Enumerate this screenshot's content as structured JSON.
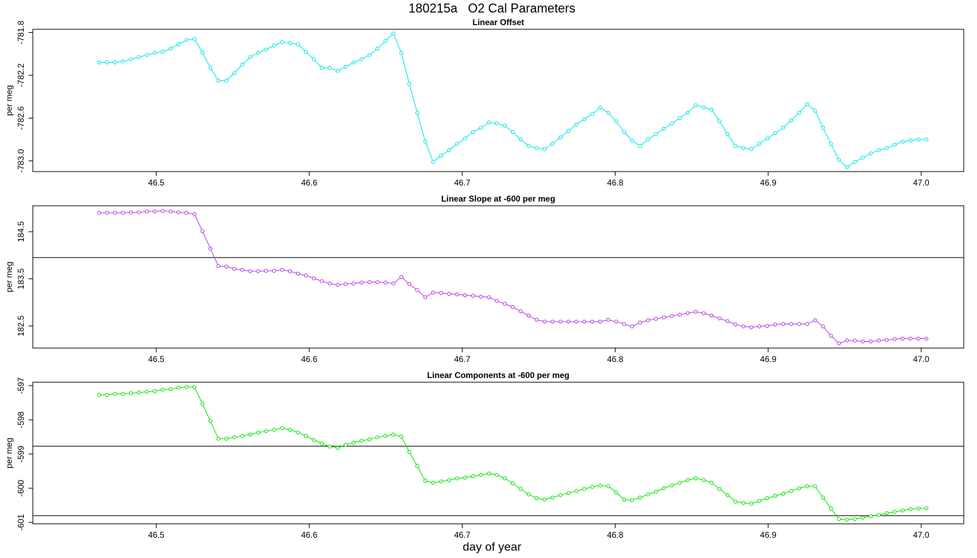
{
  "title": "180215a   O2 Cal Parameters",
  "xlabel": "day of year",
  "chart_data": [
    {
      "type": "line",
      "title": "Linear Offset",
      "ylabel": "per meg",
      "color": "#00e5ee",
      "xlim": [
        46.4193,
        47.0278
      ],
      "xticks": [
        46.5,
        46.6,
        46.7,
        46.8,
        46.9,
        {
          "value": 47,
          "label": "47.0"
        }
      ],
      "ylim": [
        -783.1,
        -781.77
      ],
      "yticks": [
        -781.8,
        -782.2,
        -782.6,
        {
          "value": -783,
          "label": "-783.0"
        }
      ],
      "hlines": [],
      "x": [
        46.4626,
        46.4678,
        46.473,
        46.4782,
        46.4834,
        46.4886,
        46.4938,
        46.499,
        46.5042,
        46.5094,
        46.5146,
        46.5198,
        46.525,
        46.5302,
        46.5354,
        46.5406,
        46.5458,
        46.551,
        46.5562,
        46.5614,
        46.5666,
        46.5718,
        46.577,
        46.5822,
        46.5874,
        46.5926,
        46.5978,
        46.603,
        46.6082,
        46.6134,
        46.6186,
        46.6238,
        46.629,
        46.6342,
        46.6394,
        46.6446,
        46.6498,
        46.655,
        46.6602,
        46.6654,
        46.6706,
        46.6758,
        46.681,
        46.6862,
        46.6914,
        46.6966,
        46.7018,
        46.707,
        46.7122,
        46.7174,
        46.7226,
        46.7278,
        46.733,
        46.7382,
        46.7434,
        46.7486,
        46.7538,
        46.759,
        46.7642,
        46.7694,
        46.7746,
        46.7798,
        46.785,
        46.7902,
        46.7954,
        46.8006,
        46.8058,
        46.811,
        46.8162,
        46.8214,
        46.8266,
        46.8318,
        46.837,
        46.8422,
        46.8474,
        46.8526,
        46.8578,
        46.863,
        46.8682,
        46.8734,
        46.8786,
        46.8838,
        46.889,
        46.8942,
        46.8994,
        46.9046,
        46.9098,
        46.915,
        46.9202,
        46.9254,
        46.9306,
        46.9358,
        46.941,
        46.9462,
        46.9514,
        46.9566,
        46.9618,
        46.967,
        46.9722,
        46.9774,
        46.9826,
        46.9878,
        46.993,
        46.9982,
        47.0034
      ],
      "values": [
        -782.08,
        -782.08,
        -782.08,
        -782.07,
        -782.05,
        -782.03,
        -782.01,
        -781.99,
        -781.98,
        -781.95,
        -781.91,
        -781.87,
        -781.86,
        -781.99,
        -782.13,
        -782.25,
        -782.25,
        -782.18,
        -782.1,
        -782.03,
        -781.99,
        -781.96,
        -781.92,
        -781.89,
        -781.9,
        -781.91,
        -781.98,
        -782.05,
        -782.13,
        -782.13,
        -782.16,
        -782.12,
        -782.08,
        -782.05,
        -782.01,
        -781.95,
        -781.88,
        -781.81,
        -781.99,
        -782.28,
        -782.55,
        -782.82,
        -783.01,
        -782.95,
        -782.9,
        -782.84,
        -782.79,
        -782.73,
        -782.69,
        -782.64,
        -782.65,
        -782.67,
        -782.73,
        -782.8,
        -782.86,
        -782.88,
        -782.89,
        -782.84,
        -782.78,
        -782.72,
        -782.66,
        -782.61,
        -782.56,
        -782.5,
        -782.55,
        -782.63,
        -782.73,
        -782.81,
        -782.86,
        -782.8,
        -782.75,
        -782.7,
        -782.65,
        -782.6,
        -782.55,
        -782.48,
        -782.5,
        -782.52,
        -782.63,
        -782.75,
        -782.86,
        -782.88,
        -782.89,
        -782.84,
        -782.79,
        -782.74,
        -782.69,
        -782.62,
        -782.55,
        -782.47,
        -782.53,
        -782.69,
        -782.84,
        -782.99,
        -783.06,
        -783.01,
        -782.97,
        -782.93,
        -782.9,
        -782.88,
        -782.85,
        -782.82,
        -782.81,
        -782.8,
        -782.8
      ]
    },
    {
      "type": "line",
      "title": "Linear Slope at -600 per meg",
      "ylabel": "per meg",
      "color": "#b23ee8",
      "xlim": [
        46.4193,
        47.0278
      ],
      "xticks": [
        46.5,
        46.6,
        46.7,
        46.8,
        46.9,
        {
          "value": 47,
          "label": "47.0"
        }
      ],
      "ylim": [
        182.03,
        185.05
      ],
      "yticks": [
        184.5,
        183.5,
        182.5
      ],
      "hlines": [
        183.95
      ],
      "x": [
        46.4626,
        46.4678,
        46.473,
        46.4782,
        46.4834,
        46.4886,
        46.4938,
        46.499,
        46.5042,
        46.5094,
        46.5146,
        46.5198,
        46.525,
        46.5302,
        46.5354,
        46.5406,
        46.5458,
        46.551,
        46.5562,
        46.5614,
        46.5666,
        46.5718,
        46.577,
        46.5822,
        46.5874,
        46.5926,
        46.5978,
        46.603,
        46.6082,
        46.6134,
        46.6186,
        46.6238,
        46.629,
        46.6342,
        46.6394,
        46.6446,
        46.6498,
        46.655,
        46.6602,
        46.6654,
        46.6706,
        46.6758,
        46.681,
        46.6862,
        46.6914,
        46.6966,
        46.7018,
        46.707,
        46.7122,
        46.7174,
        46.7226,
        46.7278,
        46.733,
        46.7382,
        46.7434,
        46.7486,
        46.7538,
        46.759,
        46.7642,
        46.7694,
        46.7746,
        46.7798,
        46.785,
        46.7902,
        46.7954,
        46.8006,
        46.8058,
        46.811,
        46.8162,
        46.8214,
        46.8266,
        46.8318,
        46.837,
        46.8422,
        46.8474,
        46.8526,
        46.8578,
        46.863,
        46.8682,
        46.8734,
        46.8786,
        46.8838,
        46.889,
        46.8942,
        46.8994,
        46.9046,
        46.9098,
        46.915,
        46.9202,
        46.9254,
        46.9306,
        46.9358,
        46.941,
        46.9462,
        46.9514,
        46.9566,
        46.9618,
        46.967,
        46.9722,
        46.9774,
        46.9826,
        46.9878,
        46.993,
        46.9982,
        47.0034
      ],
      "values": [
        184.9,
        184.9,
        184.9,
        184.9,
        184.91,
        184.91,
        184.93,
        184.93,
        184.94,
        184.93,
        184.91,
        184.9,
        184.87,
        184.51,
        184.14,
        183.77,
        183.76,
        183.71,
        183.69,
        183.66,
        183.66,
        183.67,
        183.67,
        183.69,
        183.66,
        183.61,
        183.57,
        183.51,
        183.45,
        183.4,
        183.37,
        183.39,
        183.4,
        183.42,
        183.43,
        183.43,
        183.42,
        183.4,
        183.54,
        183.39,
        183.26,
        183.11,
        183.21,
        183.2,
        183.18,
        183.17,
        183.15,
        183.14,
        183.12,
        183.11,
        183.03,
        182.97,
        182.9,
        182.81,
        182.72,
        182.63,
        182.59,
        182.59,
        182.59,
        182.59,
        182.59,
        182.59,
        182.59,
        182.59,
        182.63,
        182.59,
        182.54,
        182.49,
        182.57,
        182.62,
        182.65,
        182.68,
        182.71,
        182.74,
        182.77,
        182.8,
        182.77,
        182.72,
        182.66,
        182.6,
        182.53,
        182.49,
        182.47,
        182.49,
        182.5,
        182.53,
        182.54,
        182.54,
        182.54,
        182.54,
        182.62,
        182.49,
        182.29,
        182.13,
        182.19,
        182.19,
        182.17,
        182.17,
        182.19,
        182.2,
        182.22,
        182.23,
        182.23,
        182.23,
        182.23
      ]
    },
    {
      "type": "line",
      "title": "Linear Components at -600 per meg",
      "ylabel": "per meg",
      "color": "#00e600",
      "xlim": [
        46.4193,
        47.0278
      ],
      "xticks": [
        46.5,
        46.6,
        46.7,
        46.8,
        46.9,
        {
          "value": 47,
          "label": "47.0"
        }
      ],
      "ylim": [
        -601.04,
        -596.9
      ],
      "yticks": [
        -597,
        -598,
        -599,
        -600,
        -601
      ],
      "hlines": [
        -598.77,
        -600.8
      ],
      "x": [
        46.4626,
        46.4678,
        46.473,
        46.4782,
        46.4834,
        46.4886,
        46.4938,
        46.499,
        46.5042,
        46.5094,
        46.5146,
        46.5198,
        46.525,
        46.5302,
        46.5354,
        46.5406,
        46.5458,
        46.551,
        46.5562,
        46.5614,
        46.5666,
        46.5718,
        46.577,
        46.5822,
        46.5874,
        46.5926,
        46.5978,
        46.603,
        46.6082,
        46.6134,
        46.6186,
        46.6238,
        46.629,
        46.6342,
        46.6394,
        46.6446,
        46.6498,
        46.655,
        46.6602,
        46.6654,
        46.6706,
        46.6758,
        46.681,
        46.6862,
        46.6914,
        46.6966,
        46.7018,
        46.707,
        46.7122,
        46.7174,
        46.7226,
        46.7278,
        46.733,
        46.7382,
        46.7434,
        46.7486,
        46.7538,
        46.759,
        46.7642,
        46.7694,
        46.7746,
        46.7798,
        46.785,
        46.7902,
        46.7954,
        46.8006,
        46.8058,
        46.811,
        46.8162,
        46.8214,
        46.8266,
        46.8318,
        46.837,
        46.8422,
        46.8474,
        46.8526,
        46.8578,
        46.863,
        46.8682,
        46.8734,
        46.8786,
        46.8838,
        46.889,
        46.8942,
        46.8994,
        46.9046,
        46.9098,
        46.915,
        46.9202,
        46.9254,
        46.9306,
        46.9358,
        46.941,
        46.9462,
        46.9514,
        46.9566,
        46.9618,
        46.967,
        46.9722,
        46.9774,
        46.9826,
        46.9878,
        46.993,
        46.9982,
        47.0034
      ],
      "values": [
        -597.27,
        -597.27,
        -597.24,
        -597.24,
        -597.22,
        -597.2,
        -597.18,
        -597.16,
        -597.12,
        -597.1,
        -597.06,
        -597.04,
        -597.04,
        -597.53,
        -598.04,
        -598.55,
        -598.55,
        -598.51,
        -598.47,
        -598.43,
        -598.37,
        -598.33,
        -598.29,
        -598.24,
        -598.29,
        -598.37,
        -598.47,
        -598.59,
        -598.69,
        -598.78,
        -598.82,
        -598.73,
        -598.67,
        -598.61,
        -598.57,
        -598.51,
        -598.47,
        -598.43,
        -598.49,
        -598.94,
        -599.35,
        -599.78,
        -599.84,
        -599.8,
        -599.76,
        -599.71,
        -599.69,
        -599.65,
        -599.61,
        -599.57,
        -599.61,
        -599.71,
        -599.86,
        -600.02,
        -600.18,
        -600.29,
        -600.33,
        -600.27,
        -600.2,
        -600.14,
        -600.08,
        -600.02,
        -599.96,
        -599.92,
        -599.94,
        -600.12,
        -600.33,
        -600.35,
        -600.27,
        -600.18,
        -600.1,
        -600.0,
        -599.92,
        -599.84,
        -599.76,
        -599.71,
        -599.76,
        -599.84,
        -600.02,
        -600.2,
        -600.39,
        -600.43,
        -600.45,
        -600.37,
        -600.29,
        -600.22,
        -600.16,
        -600.08,
        -600.0,
        -599.94,
        -599.94,
        -600.27,
        -600.59,
        -600.9,
        -600.92,
        -600.9,
        -600.86,
        -600.82,
        -600.78,
        -600.73,
        -600.69,
        -600.65,
        -600.61,
        -600.59,
        -600.59
      ]
    }
  ]
}
